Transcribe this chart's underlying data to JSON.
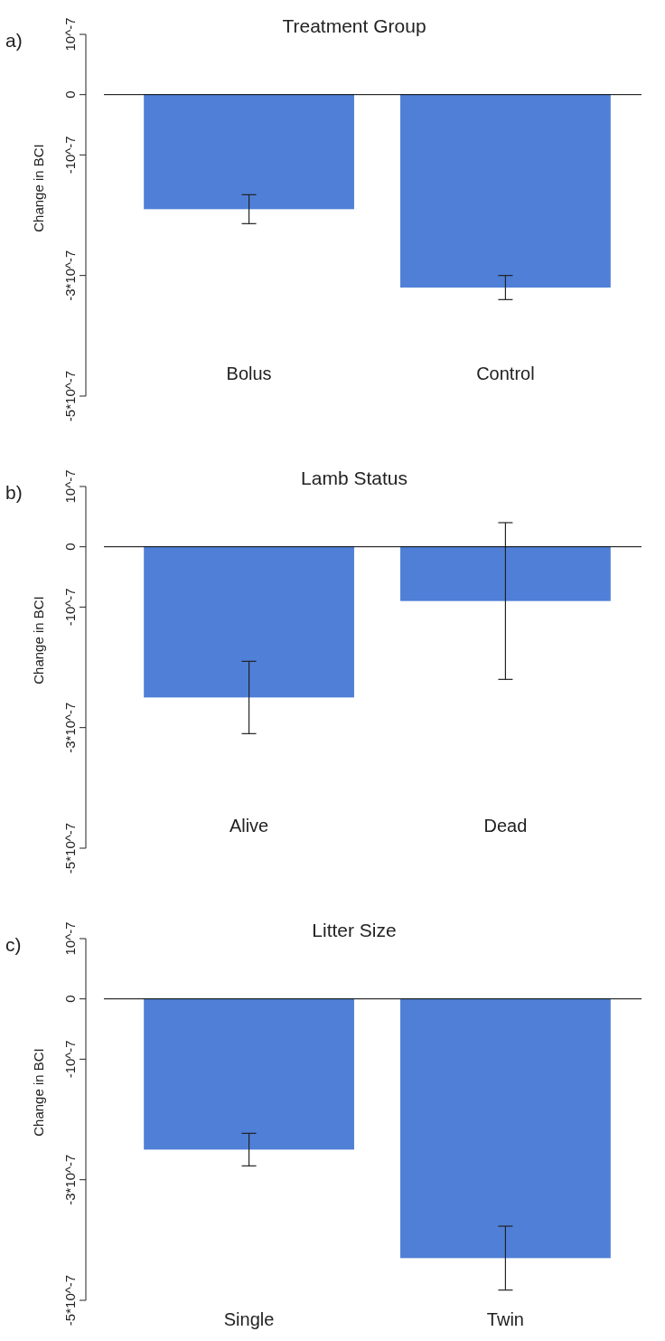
{
  "chart_data": [
    {
      "type": "bar",
      "title": "Treatment Group",
      "ylabel": "Change in BCI",
      "annotations": [
        "a)"
      ],
      "categories": [
        "Bolus",
        "Control"
      ],
      "values": [
        -1.9e-07,
        -3.2e-07
      ],
      "errors": [
        2.4e-08,
        2e-08
      ],
      "color": "#4f7fd6",
      "ylim": [
        -5e-07,
        1e-07
      ],
      "yticks": [
        {
          "value": 1e-07,
          "label": "10^-7"
        },
        {
          "value": 0,
          "label": "0"
        },
        {
          "value": -1e-07,
          "label": "-10^-7"
        },
        {
          "value": -3e-07,
          "label": "-3*10^-7"
        },
        {
          "value": -5e-07,
          "label": "-5*10^-7"
        }
      ],
      "ref_lines": [
        {
          "axis": "y",
          "value": 0,
          "color": "#000000"
        }
      ]
    },
    {
      "type": "bar",
      "title": "Lamb Status",
      "ylabel": "Change in BCI",
      "annotations": [
        "b)"
      ],
      "categories": [
        "Alive",
        "Dead"
      ],
      "values": [
        -2.5e-07,
        -9e-08
      ],
      "errors": [
        6e-08,
        1.3e-07
      ],
      "color": "#4f7fd6",
      "ylim": [
        -5e-07,
        1e-07
      ],
      "yticks": [
        {
          "value": 1e-07,
          "label": "10^-7"
        },
        {
          "value": 0,
          "label": "0"
        },
        {
          "value": -1e-07,
          "label": "-10^-7"
        },
        {
          "value": -3e-07,
          "label": "-3*10^-7"
        },
        {
          "value": -5e-07,
          "label": "-5*10^-7"
        }
      ],
      "ref_lines": [
        {
          "axis": "y",
          "value": 0,
          "color": "#000000"
        }
      ]
    },
    {
      "type": "bar",
      "title": "Litter Size",
      "ylabel": "Change in BCI",
      "annotations": [
        "c)"
      ],
      "categories": [
        "Single",
        "Twin"
      ],
      "values": [
        -2.5e-07,
        -4.3e-07
      ],
      "errors": [
        2.7e-08,
        5.3e-08
      ],
      "color": "#4f7fd6",
      "ylim": [
        -5e-07,
        1e-07
      ],
      "yticks": [
        {
          "value": 1e-07,
          "label": "10^-7"
        },
        {
          "value": 0,
          "label": "0"
        },
        {
          "value": -1e-07,
          "label": "-10^-7"
        },
        {
          "value": -3e-07,
          "label": "-3*10^-7"
        },
        {
          "value": -5e-07,
          "label": "-5*10^-7"
        }
      ],
      "ref_lines": [
        {
          "axis": "y",
          "value": 0,
          "color": "#000000"
        }
      ]
    }
  ]
}
